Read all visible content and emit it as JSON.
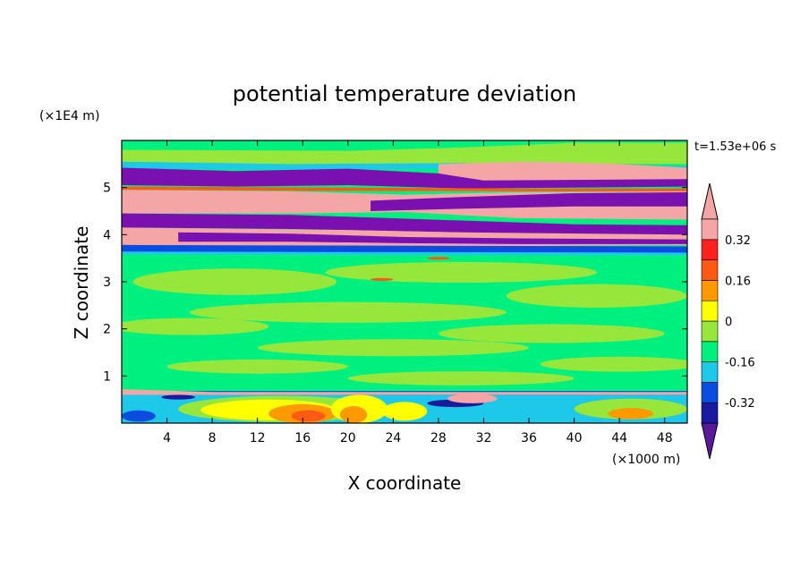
{
  "chart_data": {
    "type": "heatmap",
    "title": "potential temperature deviation",
    "xlabel": "X coordinate",
    "ylabel": "Z coordinate",
    "x_unit": "(×1000 m)",
    "y_unit": "(×1E4 m)",
    "time_label": "t=1.53e+06 s",
    "xlim": [
      0,
      50
    ],
    "ylim": [
      0,
      6
    ],
    "x_ticks": [
      4,
      8,
      12,
      16,
      20,
      24,
      28,
      32,
      36,
      40,
      44,
      48
    ],
    "x_tick_labels": [
      "4",
      "8",
      "12",
      "16",
      "20",
      "24",
      "28",
      "32",
      "36",
      "40",
      "44",
      "48"
    ],
    "y_ticks": [
      1,
      2,
      3,
      4,
      5
    ],
    "y_tick_labels": [
      "1",
      "2",
      "3",
      "4",
      "5"
    ],
    "colorbar": {
      "levels": [
        -0.4,
        -0.32,
        -0.24,
        -0.16,
        -0.08,
        0,
        0.08,
        0.16,
        0.24,
        0.32,
        0.4
      ],
      "tick_values": [
        0.32,
        0.16,
        0,
        -0.16,
        -0.32
      ],
      "tick_labels": [
        "0.32",
        "0.16",
        "0",
        "-0.16",
        "-0.32"
      ],
      "colors": [
        "#5a189a",
        "#1a1a9e",
        "#0a4de0",
        "#1ec8e8",
        "#00f080",
        "#96e63c",
        "#ffff00",
        "#ff9900",
        "#ff5a14",
        "#ff2020",
        "#f4a5a5"
      ],
      "extend": "both"
    },
    "band_colors": {
      "purple": "#7a10b0",
      "pink": "#f4a5a5",
      "green": "#00f080",
      "lime": "#96e63c",
      "cyan": "#1ec8e8",
      "blue": "#0a4de0",
      "navy": "#1a1a9e",
      "orange": "#ff9900",
      "red": "#ff5a14",
      "yellow": "#ffff00"
    }
  }
}
